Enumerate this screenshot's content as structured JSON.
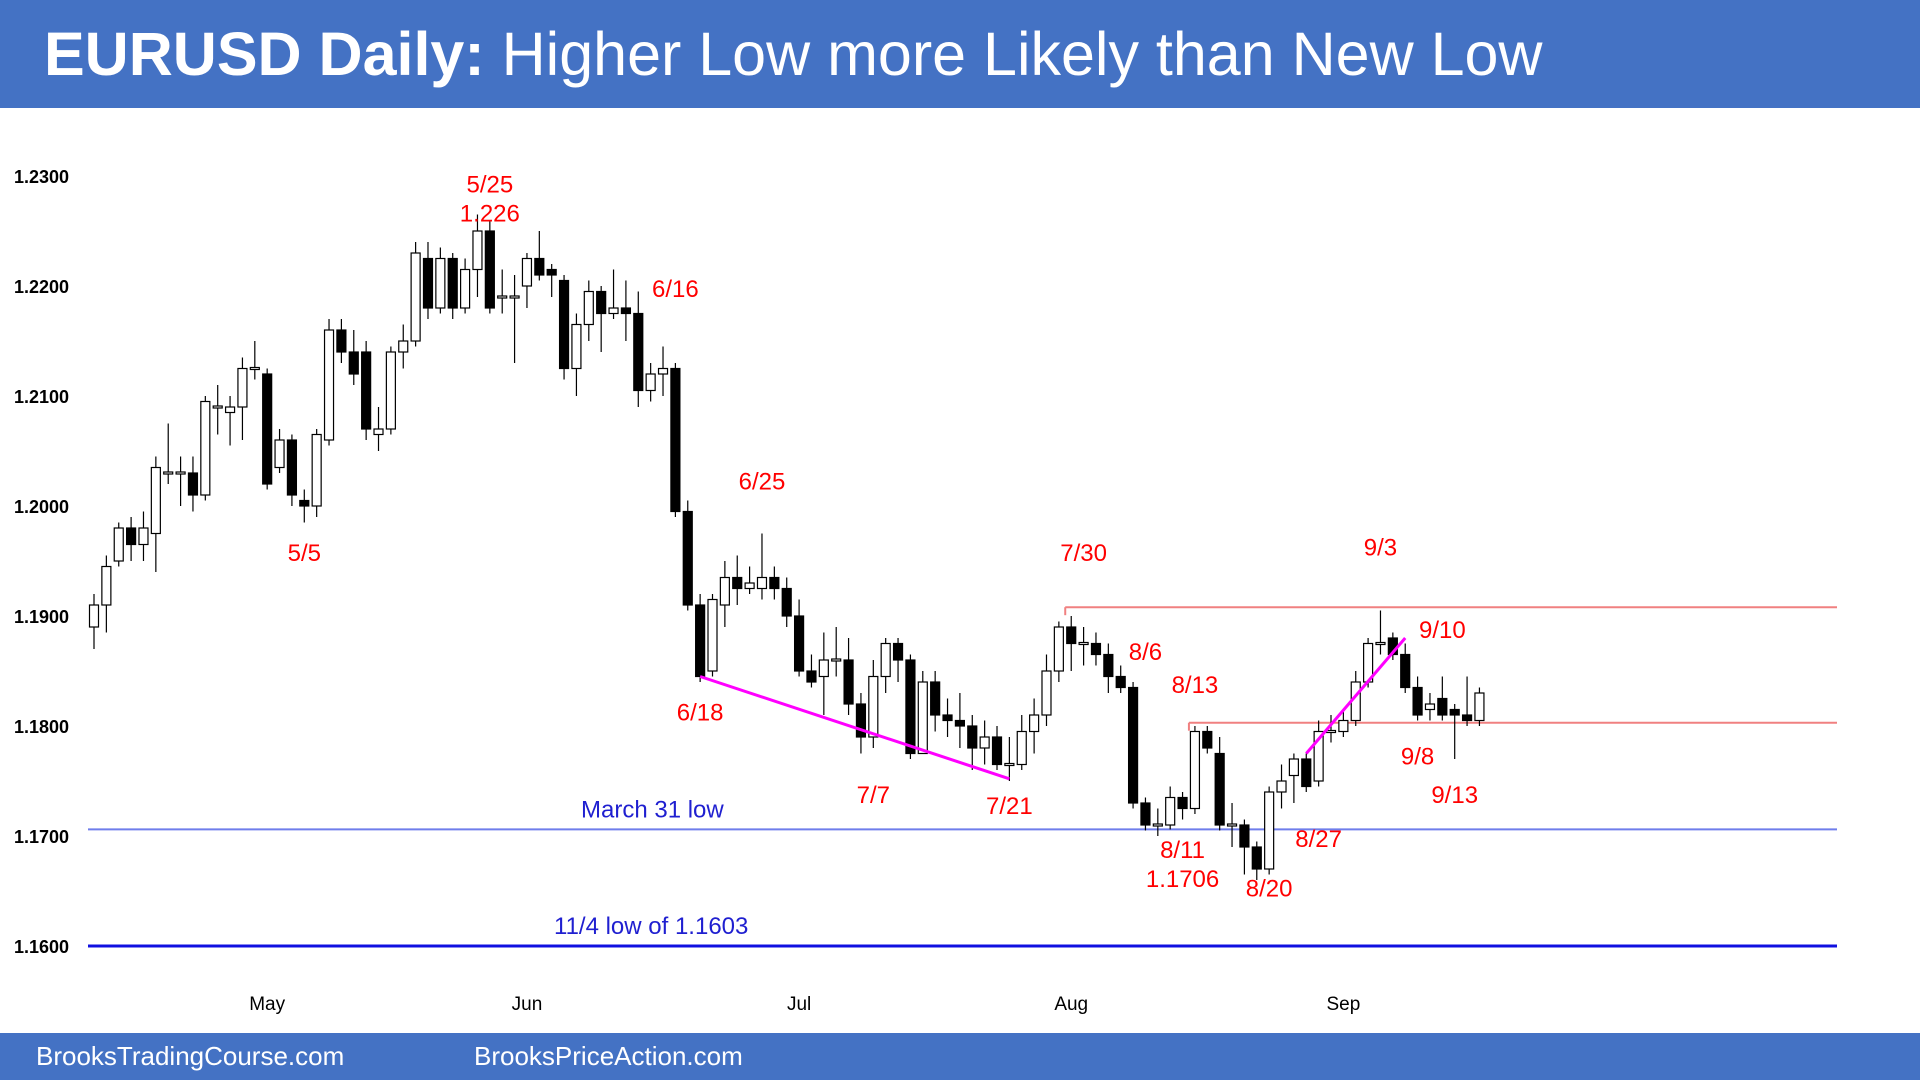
{
  "header": {
    "title_bold": "EURUSD Daily:",
    "title_rest": "Higher Low more Likely than New Low"
  },
  "footer": {
    "left": "BrooksTradingCourse.com",
    "right": "BrooksPriceAction.com"
  },
  "colors": {
    "header_bg": "#4472C4",
    "annotation": "#FF0000",
    "trendline": "#FF00FF",
    "support": "#1F1FD0",
    "resistance": "#F08080"
  },
  "chart_data": {
    "type": "candlestick",
    "title": "EURUSD Daily",
    "ylim": [
      1.154,
      1.2435
    ],
    "yticks": [
      {
        "value": 1.23,
        "label": "1.2300"
      },
      {
        "value": 1.22,
        "label": "1.2200"
      },
      {
        "value": 1.21,
        "label": "1.2100"
      },
      {
        "value": 1.2,
        "label": "1.2000"
      },
      {
        "value": 1.19,
        "label": "1.1900"
      },
      {
        "value": 1.18,
        "label": "1.1800"
      },
      {
        "value": 1.17,
        "label": "1.1700"
      },
      {
        "value": 1.16,
        "label": "1.1600"
      }
    ],
    "months": [
      {
        "label": "May",
        "index": 14
      },
      {
        "label": "Jun",
        "index": 35
      },
      {
        "label": "Jul",
        "index": 57
      },
      {
        "label": "Aug",
        "index": 79
      },
      {
        "label": "Sep",
        "index": 101
      }
    ],
    "candles": [
      [
        1.189,
        1.191,
        1.192,
        1.187
      ],
      [
        1.191,
        1.1945,
        1.1955,
        1.1885
      ],
      [
        1.195,
        1.198,
        1.1985,
        1.1945
      ],
      [
        1.198,
        1.1965,
        1.199,
        1.195
      ],
      [
        1.1965,
        1.198,
        1.1995,
        1.195
      ],
      [
        1.1975,
        1.2035,
        1.2045,
        1.194
      ],
      [
        1.203,
        1.203,
        1.2075,
        1.202
      ],
      [
        1.203,
        1.203,
        1.2045,
        1.2
      ],
      [
        1.203,
        1.201,
        1.2045,
        1.1995
      ],
      [
        1.201,
        1.2095,
        1.21,
        1.2005
      ],
      [
        1.209,
        1.209,
        1.211,
        1.2065
      ],
      [
        1.2085,
        1.209,
        1.21,
        1.2055
      ],
      [
        1.209,
        1.2125,
        1.2135,
        1.206
      ],
      [
        1.2125,
        1.2125,
        1.215,
        1.2115
      ],
      [
        1.212,
        1.202,
        1.2125,
        1.2015
      ],
      [
        1.2035,
        1.206,
        1.207,
        1.203
      ],
      [
        1.206,
        1.201,
        1.2065,
        1.2
      ],
      [
        1.2005,
        1.2,
        1.2015,
        1.1985
      ],
      [
        1.2,
        1.2065,
        1.207,
        1.199
      ],
      [
        1.206,
        1.216,
        1.217,
        1.2055
      ],
      [
        1.216,
        1.214,
        1.217,
        1.213
      ],
      [
        1.214,
        1.212,
        1.216,
        1.211
      ],
      [
        1.214,
        1.207,
        1.215,
        1.206
      ],
      [
        1.2065,
        1.207,
        1.209,
        1.205
      ],
      [
        1.207,
        1.214,
        1.2145,
        1.2065
      ],
      [
        1.214,
        1.215,
        1.2165,
        1.2125
      ],
      [
        1.215,
        1.223,
        1.224,
        1.2145
      ],
      [
        1.2225,
        1.218,
        1.224,
        1.217
      ],
      [
        1.218,
        1.2225,
        1.2235,
        1.2175
      ],
      [
        1.2225,
        1.218,
        1.223,
        1.217
      ],
      [
        1.218,
        1.2215,
        1.2225,
        1.2175
      ],
      [
        1.2215,
        1.225,
        1.2265,
        1.219
      ],
      [
        1.225,
        1.218,
        1.226,
        1.2175
      ],
      [
        1.219,
        1.219,
        1.2215,
        1.2175
      ],
      [
        1.219,
        1.219,
        1.221,
        1.213
      ],
      [
        1.22,
        1.2225,
        1.223,
        1.218
      ],
      [
        1.2225,
        1.221,
        1.225,
        1.2205
      ],
      [
        1.2215,
        1.221,
        1.222,
        1.219
      ],
      [
        1.2205,
        1.2125,
        1.221,
        1.2115
      ],
      [
        1.2125,
        1.2165,
        1.2175,
        1.21
      ],
      [
        1.2165,
        1.2195,
        1.2205,
        1.215
      ],
      [
        1.2195,
        1.2175,
        1.22,
        1.214
      ],
      [
        1.2175,
        1.218,
        1.2215,
        1.217
      ],
      [
        1.218,
        1.2175,
        1.2205,
        1.215
      ],
      [
        1.2175,
        1.2105,
        1.2195,
        1.209
      ],
      [
        1.2105,
        1.212,
        1.213,
        1.2095
      ],
      [
        1.212,
        1.2125,
        1.2145,
        1.21
      ],
      [
        1.2125,
        1.1995,
        1.213,
        1.199
      ],
      [
        1.1995,
        1.191,
        1.2005,
        1.1905
      ],
      [
        1.191,
        1.1845,
        1.192,
        1.184
      ],
      [
        1.185,
        1.1915,
        1.192,
        1.1845
      ],
      [
        1.191,
        1.1935,
        1.195,
        1.189
      ],
      [
        1.1935,
        1.1925,
        1.1955,
        1.191
      ],
      [
        1.1925,
        1.193,
        1.1945,
        1.192
      ],
      [
        1.1925,
        1.1935,
        1.1975,
        1.1915
      ],
      [
        1.1935,
        1.1925,
        1.1945,
        1.1915
      ],
      [
        1.1925,
        1.19,
        1.1935,
        1.189
      ],
      [
        1.19,
        1.185,
        1.1915,
        1.1845
      ],
      [
        1.185,
        1.184,
        1.1865,
        1.1835
      ],
      [
        1.1845,
        1.186,
        1.1885,
        1.181
      ],
      [
        1.186,
        1.186,
        1.189,
        1.1845
      ],
      [
        1.186,
        1.182,
        1.188,
        1.181
      ],
      [
        1.182,
        1.179,
        1.183,
        1.1775
      ],
      [
        1.179,
        1.1845,
        1.186,
        1.178
      ],
      [
        1.1845,
        1.1875,
        1.188,
        1.183
      ],
      [
        1.1875,
        1.186,
        1.188,
        1.184
      ],
      [
        1.186,
        1.1775,
        1.1865,
        1.177
      ],
      [
        1.1775,
        1.184,
        1.185,
        1.1775
      ],
      [
        1.184,
        1.181,
        1.185,
        1.1795
      ],
      [
        1.181,
        1.1805,
        1.1825,
        1.179
      ],
      [
        1.1805,
        1.18,
        1.183,
        1.178
      ],
      [
        1.18,
        1.178,
        1.181,
        1.176
      ],
      [
        1.178,
        1.179,
        1.1805,
        1.1765
      ],
      [
        1.179,
        1.1765,
        1.18,
        1.176
      ],
      [
        1.1765,
        1.1765,
        1.179,
        1.175
      ],
      [
        1.1765,
        1.1795,
        1.181,
        1.176
      ],
      [
        1.1795,
        1.181,
        1.1825,
        1.1775
      ],
      [
        1.181,
        1.185,
        1.1865,
        1.18
      ],
      [
        1.185,
        1.189,
        1.1895,
        1.184
      ],
      [
        1.189,
        1.1875,
        1.19,
        1.185
      ],
      [
        1.1875,
        1.1875,
        1.189,
        1.1855
      ],
      [
        1.1875,
        1.1865,
        1.1885,
        1.1855
      ],
      [
        1.1865,
        1.1845,
        1.1875,
        1.183
      ],
      [
        1.1845,
        1.1835,
        1.1855,
        1.183
      ],
      [
        1.1835,
        1.173,
        1.184,
        1.1725
      ],
      [
        1.173,
        1.171,
        1.1735,
        1.1705
      ],
      [
        1.171,
        1.171,
        1.1725,
        1.17
      ],
      [
        1.171,
        1.1735,
        1.1745,
        1.1706
      ],
      [
        1.1735,
        1.1725,
        1.174,
        1.1715
      ],
      [
        1.1725,
        1.1795,
        1.18,
        1.172
      ],
      [
        1.1795,
        1.178,
        1.18,
        1.1775
      ],
      [
        1.1775,
        1.171,
        1.179,
        1.1705
      ],
      [
        1.171,
        1.171,
        1.173,
        1.169
      ],
      [
        1.171,
        1.169,
        1.1715,
        1.1665
      ],
      [
        1.169,
        1.167,
        1.1695,
        1.166
      ],
      [
        1.167,
        1.174,
        1.1745,
        1.1665
      ],
      [
        1.174,
        1.175,
        1.1765,
        1.1725
      ],
      [
        1.1755,
        1.177,
        1.1775,
        1.173
      ],
      [
        1.177,
        1.1745,
        1.1775,
        1.174
      ],
      [
        1.175,
        1.1795,
        1.1805,
        1.1745
      ],
      [
        1.1795,
        1.1795,
        1.181,
        1.1785
      ],
      [
        1.1795,
        1.1805,
        1.1815,
        1.179
      ],
      [
        1.1805,
        1.184,
        1.185,
        1.18
      ],
      [
        1.184,
        1.1875,
        1.188,
        1.1835
      ],
      [
        1.1875,
        1.1875,
        1.1905,
        1.1865
      ],
      [
        1.188,
        1.1865,
        1.1885,
        1.186
      ],
      [
        1.1865,
        1.1835,
        1.1875,
        1.183
      ],
      [
        1.1835,
        1.181,
        1.1845,
        1.1805
      ],
      [
        1.1815,
        1.182,
        1.183,
        1.1805
      ],
      [
        1.1825,
        1.181,
        1.1845,
        1.1805
      ],
      [
        1.1815,
        1.181,
        1.182,
        1.177
      ],
      [
        1.181,
        1.1805,
        1.1845,
        1.18
      ],
      [
        1.1805,
        1.183,
        1.1835,
        1.18
      ]
    ],
    "levels": [
      {
        "name": "March 31 low",
        "value": 1.1706,
        "style": "thin"
      },
      {
        "name": "11/4 low of 1.1603",
        "value": 1.16,
        "style": "thick"
      }
    ],
    "resistance_lines": [
      {
        "value": 1.1908,
        "from_index": 79,
        "to": "end"
      },
      {
        "value": 1.1803,
        "from_index": 89,
        "to": "end"
      }
    ],
    "trendlines": [
      {
        "from": [
          49,
          1.1845
        ],
        "to": [
          74,
          1.1752
        ]
      },
      {
        "from": [
          98,
          1.1775
        ],
        "to": [
          106,
          1.188
        ]
      }
    ],
    "annotations": [
      {
        "lines": [
          "5/25",
          "1.226"
        ],
        "index": 32,
        "value": 1.2285
      },
      {
        "lines": [
          "5/5"
        ],
        "index": 17,
        "value": 1.195
      },
      {
        "lines": [
          "6/16"
        ],
        "index": 47,
        "value": 1.219
      },
      {
        "lines": [
          "6/25"
        ],
        "index": 54,
        "value": 1.2015
      },
      {
        "lines": [
          "6/18"
        ],
        "index": 49,
        "value": 1.1805
      },
      {
        "lines": [
          "7/7"
        ],
        "index": 63,
        "value": 1.173
      },
      {
        "lines": [
          "7/21"
        ],
        "index": 74,
        "value": 1.172
      },
      {
        "lines": [
          "7/30"
        ],
        "index": 80,
        "value": 1.195
      },
      {
        "lines": [
          "8/6"
        ],
        "index": 85,
        "value": 1.186
      },
      {
        "lines": [
          "8/13"
        ],
        "index": 89,
        "value": 1.183
      },
      {
        "lines": [
          "8/11",
          "1.1706"
        ],
        "index": 88,
        "value": 1.168
      },
      {
        "lines": [
          "8/20"
        ],
        "index": 95,
        "value": 1.1645
      },
      {
        "lines": [
          "8/27"
        ],
        "index": 99,
        "value": 1.169
      },
      {
        "lines": [
          "9/3"
        ],
        "index": 104,
        "value": 1.1955
      },
      {
        "lines": [
          "9/10"
        ],
        "index": 109,
        "value": 1.188
      },
      {
        "lines": [
          "9/8"
        ],
        "index": 107,
        "value": 1.1765
      },
      {
        "lines": [
          "9/13"
        ],
        "index": 110,
        "value": 1.173
      }
    ]
  }
}
